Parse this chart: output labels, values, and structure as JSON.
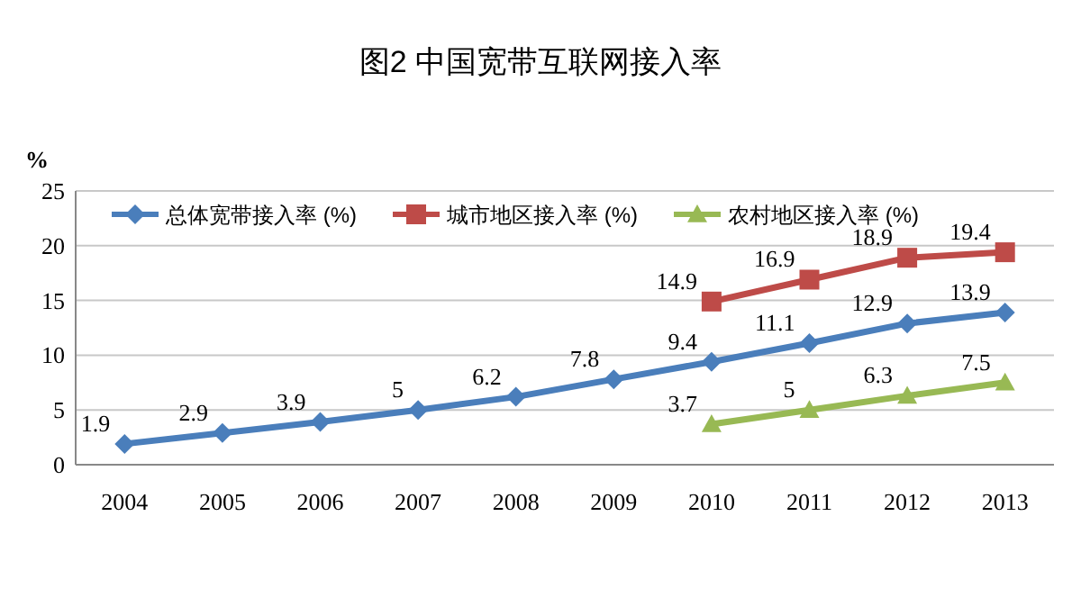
{
  "chart_data": {
    "type": "line",
    "title": "图2  中国宽带互联网接入率",
    "ylabel": "%",
    "categories": [
      "2004",
      "2005",
      "2006",
      "2007",
      "2008",
      "2009",
      "2010",
      "2011",
      "2012",
      "2013"
    ],
    "series": [
      {
        "name": "总体宽带接入率 (%)",
        "color": "#4a7ebb",
        "marker": "diamond",
        "values": [
          1.9,
          2.9,
          3.9,
          5,
          6.2,
          7.8,
          9.4,
          11.1,
          12.9,
          13.9
        ]
      },
      {
        "name": "城市地区接入率 (%)",
        "color": "#be4b48",
        "marker": "square",
        "values": [
          null,
          null,
          null,
          null,
          null,
          null,
          14.9,
          16.9,
          18.9,
          19.4
        ]
      },
      {
        "name": "农村地区接入率 (%)",
        "color": "#98b954",
        "marker": "triangle",
        "values": [
          null,
          null,
          null,
          null,
          null,
          null,
          3.7,
          5,
          6.3,
          7.5
        ]
      }
    ],
    "ylim": [
      0,
      25
    ],
    "yticks": [
      0,
      5,
      10,
      15,
      20,
      25
    ],
    "grid": "y",
    "legend": "top",
    "data_labels": true,
    "line_style": "solid"
  }
}
